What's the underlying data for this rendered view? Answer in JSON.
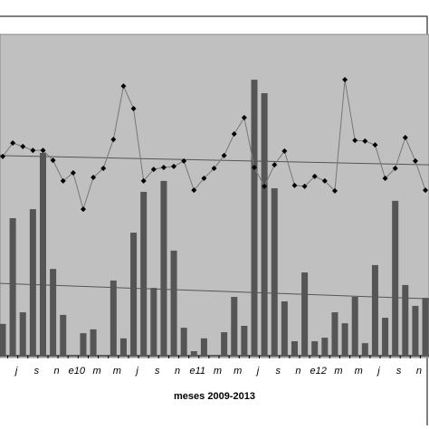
{
  "chart_data": {
    "type": "bar-line",
    "x_label": "meses 2009-2013",
    "categories": [
      null,
      "j",
      null,
      "s",
      null,
      "n",
      null,
      "e10",
      null,
      "m",
      null,
      "m",
      null,
      "j",
      null,
      "s",
      null,
      "n",
      null,
      "e11",
      null,
      "m",
      null,
      "m",
      null,
      "j",
      null,
      "s",
      null,
      "n",
      null,
      "e12",
      null,
      "m",
      null,
      "m",
      null,
      "j",
      null,
      "s",
      null,
      "n",
      null
    ],
    "ylim": [
      0,
      100
    ],
    "series": [
      {
        "kind": "bar",
        "color": "#555555",
        "values": [
          9.9,
          42.8,
          13.5,
          45.6,
          63.1,
          27.0,
          12.7,
          0,
          7.0,
          8.2,
          0,
          23.4,
          5.4,
          38.3,
          51.0,
          21.1,
          54.4,
          32.7,
          8.7,
          1.4,
          5.4,
          0,
          7.3,
          18.3,
          9.3,
          85.9,
          81.7,
          52.1,
          16.9,
          4.5,
          25.9,
          4.5,
          5.6,
          13.5,
          10.1,
          18.3,
          3.9,
          28.2,
          11.8,
          48.2,
          22.0,
          15.5,
          18.0
        ]
      },
      {
        "kind": "line",
        "color": "#777777",
        "marker_color": "#000000",
        "values": [
          62.0,
          66.2,
          65.1,
          63.9,
          63.9,
          60.8,
          54.4,
          56.9,
          45.6,
          55.5,
          58.3,
          67.3,
          83.9,
          76.9,
          54.4,
          58.0,
          58.6,
          58.9,
          60.6,
          51.5,
          55.2,
          58.3,
          62.3,
          69.0,
          74.1,
          58.6,
          52.7,
          59.4,
          63.7,
          53.0,
          52.7,
          55.8,
          54.4,
          51.3,
          85.9,
          67.0,
          66.8,
          65.6,
          55.2,
          58.3,
          67.9,
          60.6,
          51.5
        ]
      }
    ],
    "trendlines": [
      {
        "color": "#555555",
        "values": [
          62.3,
          59.4
        ]
      },
      {
        "color": "#555555",
        "values": [
          22.5,
          17.7
        ]
      }
    ]
  }
}
